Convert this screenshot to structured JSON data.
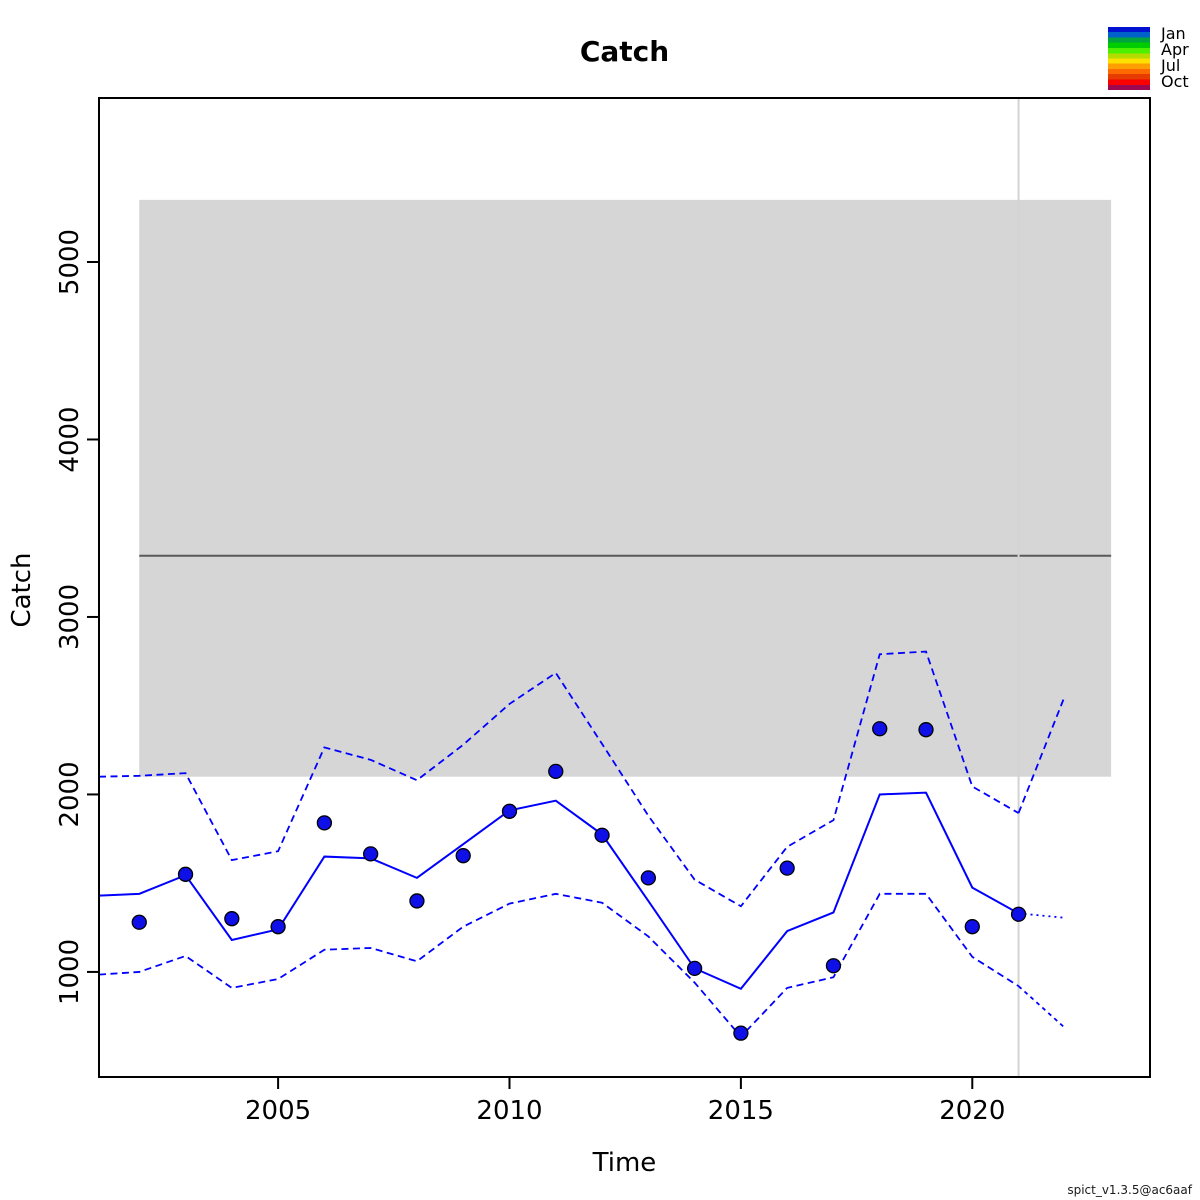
{
  "title": "Catch",
  "watermark": "spict_v1.3.5@ac6aaf",
  "legend": {
    "labels": [
      "Jan",
      "Apr",
      "Jul",
      "Oct"
    ],
    "colors": [
      "#0011CF",
      "#0061C8",
      "#00A43C",
      "#00CD00",
      "#4DF000",
      "#B5DC00",
      "#FFE000",
      "#FF9E00",
      "#FF6A00",
      "#E63C00",
      "#FA0000",
      "#9E0850"
    ]
  },
  "chart_data": {
    "type": "line",
    "title": "Catch",
    "xlabel": "Time",
    "ylabel": "Catch",
    "xlim": [
      2001.13,
      2023.84
    ],
    "ylim": [
      408,
      5924
    ],
    "x_ticks": [
      2005,
      2010,
      2015,
      2020
    ],
    "y_ticks": [
      1000,
      2000,
      3000,
      4000,
      5000
    ],
    "grid": false,
    "legend_position": "top-right",
    "annotations": {
      "msy_band": {
        "x": [
          2002,
          2023
        ],
        "y": [
          2100,
          5350
        ],
        "color": "#d6d6d6"
      },
      "msy_line": {
        "x": [
          2002,
          2023
        ],
        "y": 3345,
        "color": "#595959"
      },
      "vertical_line": {
        "x": 2021,
        "color": "#d3d3d3"
      }
    },
    "series": [
      {
        "name": "upper-ci",
        "kind": "line",
        "style": "dashed",
        "color": "#0000ff",
        "points": [
          [
            2001.13,
            2100
          ],
          [
            2002,
            2105
          ],
          [
            2003,
            2120
          ],
          [
            2004,
            1630
          ],
          [
            2005,
            1680
          ],
          [
            2006,
            2265
          ],
          [
            2007,
            2195
          ],
          [
            2008,
            2080
          ],
          [
            2009,
            2280
          ],
          [
            2010,
            2510
          ],
          [
            2011,
            2685
          ],
          [
            2012,
            2285
          ],
          [
            2013,
            1880
          ],
          [
            2014,
            1520
          ],
          [
            2015,
            1370
          ],
          [
            2016,
            1705
          ],
          [
            2017,
            1855
          ],
          [
            2018,
            2790
          ],
          [
            2019,
            2805
          ],
          [
            2020,
            2045
          ],
          [
            2021,
            1895
          ]
        ]
      },
      {
        "name": "lower-ci",
        "kind": "line",
        "style": "dashed",
        "color": "#0000ff",
        "points": [
          [
            2001.13,
            985
          ],
          [
            2002,
            1000
          ],
          [
            2003,
            1090
          ],
          [
            2004,
            910
          ],
          [
            2005,
            960
          ],
          [
            2006,
            1125
          ],
          [
            2007,
            1135
          ],
          [
            2008,
            1060
          ],
          [
            2009,
            1255
          ],
          [
            2010,
            1385
          ],
          [
            2011,
            1440
          ],
          [
            2012,
            1390
          ],
          [
            2013,
            1200
          ],
          [
            2014,
            940
          ],
          [
            2015,
            635
          ],
          [
            2016,
            910
          ],
          [
            2017,
            970
          ],
          [
            2018,
            1440
          ],
          [
            2019,
            1440
          ],
          [
            2020,
            1085
          ],
          [
            2021,
            920
          ]
        ]
      },
      {
        "name": "catch-estimate",
        "kind": "line",
        "style": "solid",
        "color": "#0000ff",
        "points": [
          [
            2001.13,
            1430
          ],
          [
            2002,
            1440
          ],
          [
            2003,
            1545
          ],
          [
            2004,
            1180
          ],
          [
            2005,
            1240
          ],
          [
            2006,
            1650
          ],
          [
            2007,
            1640
          ],
          [
            2008,
            1530
          ],
          [
            2009,
            1720
          ],
          [
            2010,
            1910
          ],
          [
            2011,
            1965
          ],
          [
            2012,
            1775
          ],
          [
            2013,
            1400
          ],
          [
            2014,
            1020
          ],
          [
            2015,
            905
          ],
          [
            2016,
            1230
          ],
          [
            2017,
            1335
          ],
          [
            2018,
            2000
          ],
          [
            2019,
            2010
          ],
          [
            2020,
            1475
          ],
          [
            2021,
            1330
          ]
        ]
      },
      {
        "name": "prediction-upper",
        "kind": "line",
        "style": "dashed",
        "color": "#0000ff",
        "points": [
          [
            2021,
            1895
          ],
          [
            2022,
            2555
          ]
        ]
      },
      {
        "name": "prediction-lower",
        "kind": "line",
        "style": "dashed-fine",
        "color": "#0000ff",
        "points": [
          [
            2021,
            920
          ],
          [
            2022,
            685
          ]
        ]
      },
      {
        "name": "prediction-estimate",
        "kind": "line",
        "style": "dotted",
        "color": "#0000ff",
        "points": [
          [
            2021,
            1330
          ],
          [
            2022,
            1305
          ]
        ]
      },
      {
        "name": "observations",
        "kind": "scatter",
        "color": "#0f0fe8",
        "points": [
          [
            2002,
            1280
          ],
          [
            2003,
            1550
          ],
          [
            2004,
            1300
          ],
          [
            2005,
            1255
          ],
          [
            2006,
            1840
          ],
          [
            2007,
            1665
          ],
          [
            2008,
            1400
          ],
          [
            2009,
            1655
          ],
          [
            2010,
            1905
          ],
          [
            2011,
            2130
          ],
          [
            2012,
            1770
          ],
          [
            2013,
            1530
          ],
          [
            2014,
            1020
          ],
          [
            2015,
            655
          ],
          [
            2016,
            1585
          ],
          [
            2017,
            1035
          ],
          [
            2018,
            2370
          ],
          [
            2019,
            2365
          ],
          [
            2020,
            1255
          ],
          [
            2021,
            1325
          ]
        ]
      }
    ]
  }
}
